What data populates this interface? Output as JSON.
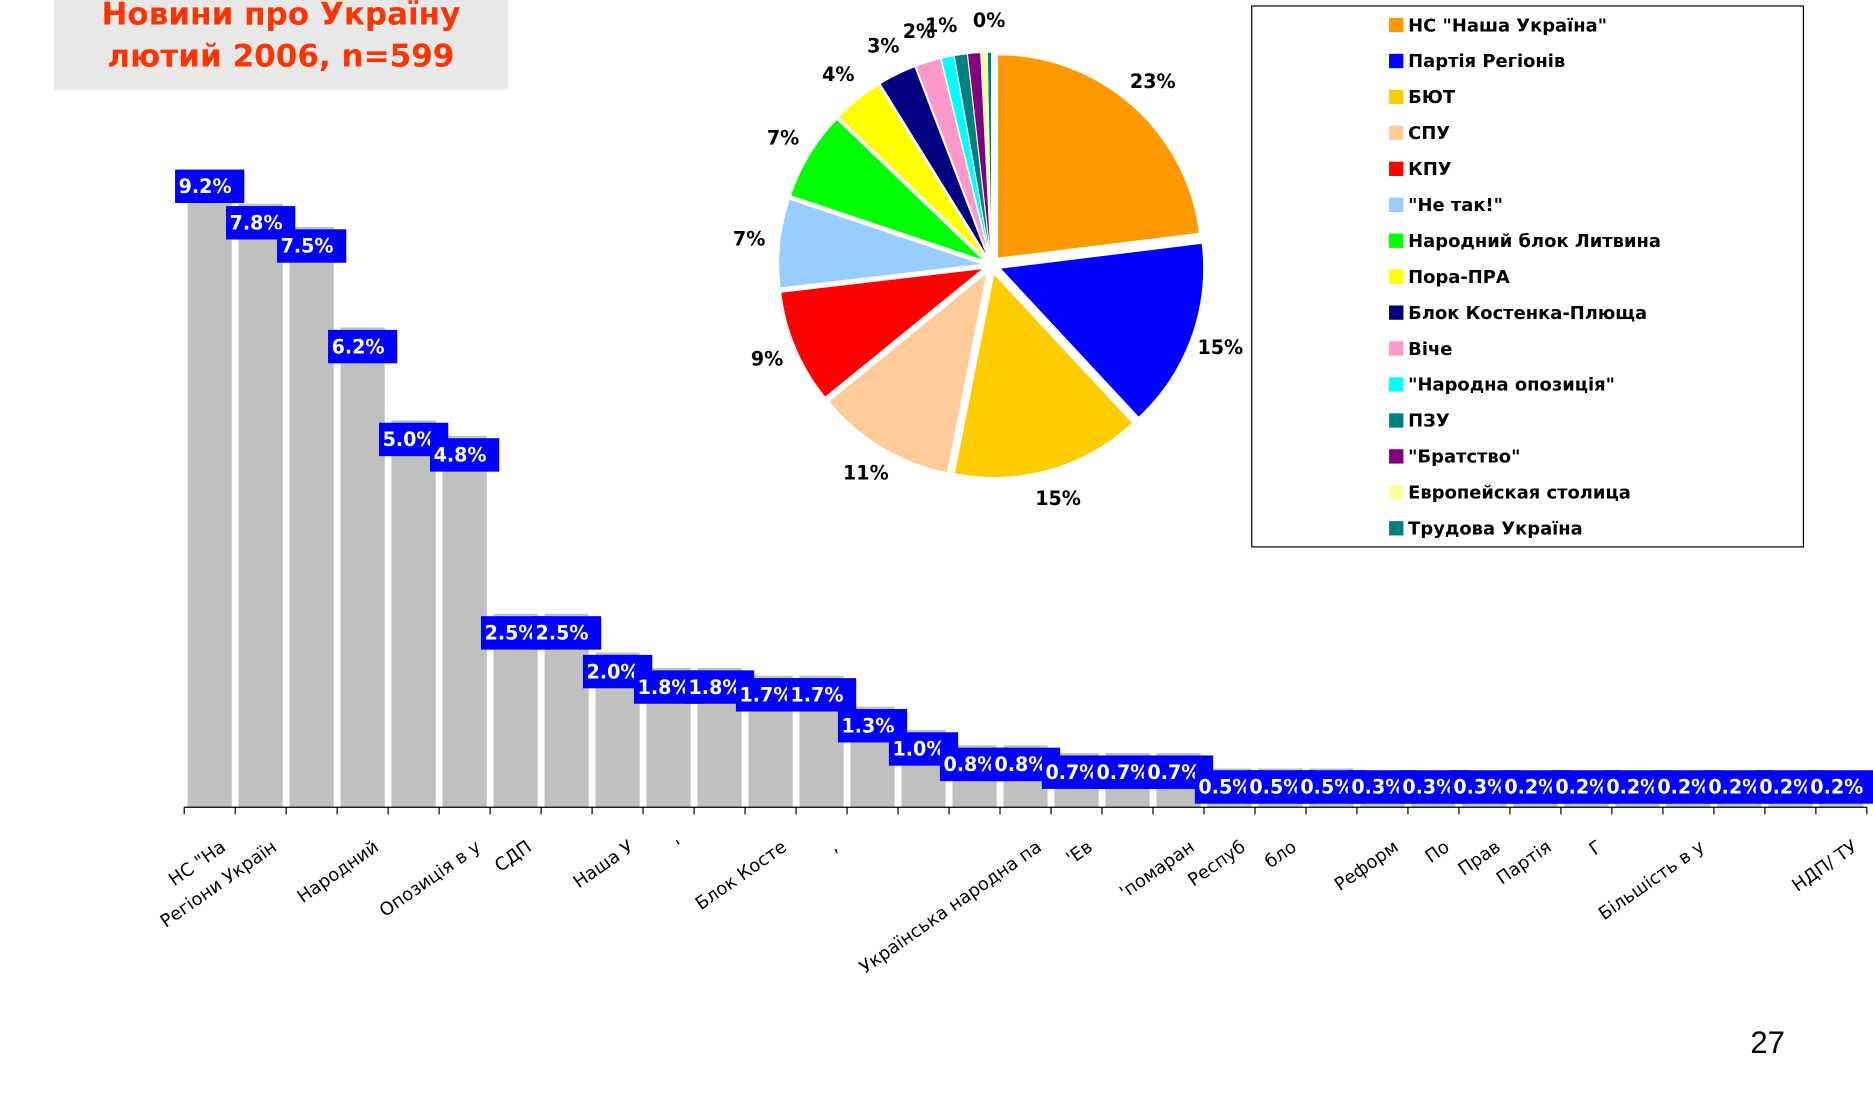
{
  "title_box": {
    "lines": [
      "Новини про Україну",
      "лютий 2006, n=599"
    ]
  },
  "page_number": "27",
  "chart_data": [
    {
      "type": "bar",
      "categories": [
        "НС \"На",
        "Регіони Україн",
        null,
        "Народний",
        null,
        "Опозиція в у",
        "СДП",
        null,
        "Наша У",
        "'",
        null,
        "Блок Косте",
        ",",
        null,
        null,
        null,
        "Українська народна па",
        "'Ев",
        null,
        "'помаран",
        "Респуб",
        "бло",
        null,
        "Реформ",
        "По",
        "Прав",
        "Партія",
        "Г",
        null,
        "Більшість в у",
        null,
        null,
        "НДП/ ТУ"
      ],
      "values": [
        9.2,
        7.8,
        7.5,
        6.2,
        5.0,
        4.8,
        2.5,
        2.5,
        2.0,
        1.8,
        1.8,
        1.7,
        1.7,
        1.3,
        1.0,
        0.8,
        0.8,
        0.7,
        0.7,
        0.7,
        0.5,
        0.5,
        0.5,
        0.3,
        0.3,
        0.3,
        0.2,
        0.2,
        0.2,
        0.2,
        0.2,
        0.2,
        0.2
      ],
      "value_labels": [
        "9.2%",
        "7.8%",
        "7.5%",
        "6.2%",
        "5.0%",
        "4.8%",
        "2.5%",
        "2.5%",
        "2.0%",
        "1.8%",
        "1.8%",
        "1.7%",
        "1.7%",
        "1.3%",
        "1.0%",
        "0.8%",
        "0.8%",
        "0.7%",
        "0.7%",
        "0.7%",
        "0.5%",
        "0.5%",
        "0.5%",
        "0.3%",
        "0.3%",
        "0.3%",
        "0.2%",
        "0.2%",
        "0.2%",
        "0.2%",
        "0.2%",
        "0.2%",
        "0.2%"
      ],
      "color": "#c0c0c0",
      "label_color": "#0000ff"
    },
    {
      "type": "pie",
      "categories": [
        "НС \"Наша Україна\"",
        "Партія Регіонів",
        "БЮТ",
        "СПУ",
        "КПУ",
        "\"Не так!\"",
        "Народний блок Литвина",
        "Пора-ПРА",
        "Блок Костенка-Плюща",
        "Віче",
        "\"Народна опозиція\"",
        "ПЗУ",
        "\"Братство\"",
        "Европейская столица",
        "Трудова Україна"
      ],
      "values": [
        23,
        15,
        15,
        11,
        9,
        7,
        7,
        4,
        3,
        2,
        1,
        1,
        1,
        0.5,
        0.3
      ],
      "value_labels": [
        "23%",
        "15%",
        "15%",
        "11%",
        "9%",
        "7%",
        "7%",
        "4%",
        "3%",
        "2%",
        "1%",
        null,
        null,
        null,
        "0%"
      ],
      "colors": [
        "#ff9900",
        "#0000ff",
        "#ffcc00",
        "#ffcc99",
        "#ff0000",
        "#99ccff",
        "#00ff00",
        "#ffff00",
        "#000080",
        "#ff99cc",
        "#00ffff",
        "#008080",
        "#800080",
        "#ffff99",
        "#008080"
      ],
      "legend": "right"
    }
  ]
}
